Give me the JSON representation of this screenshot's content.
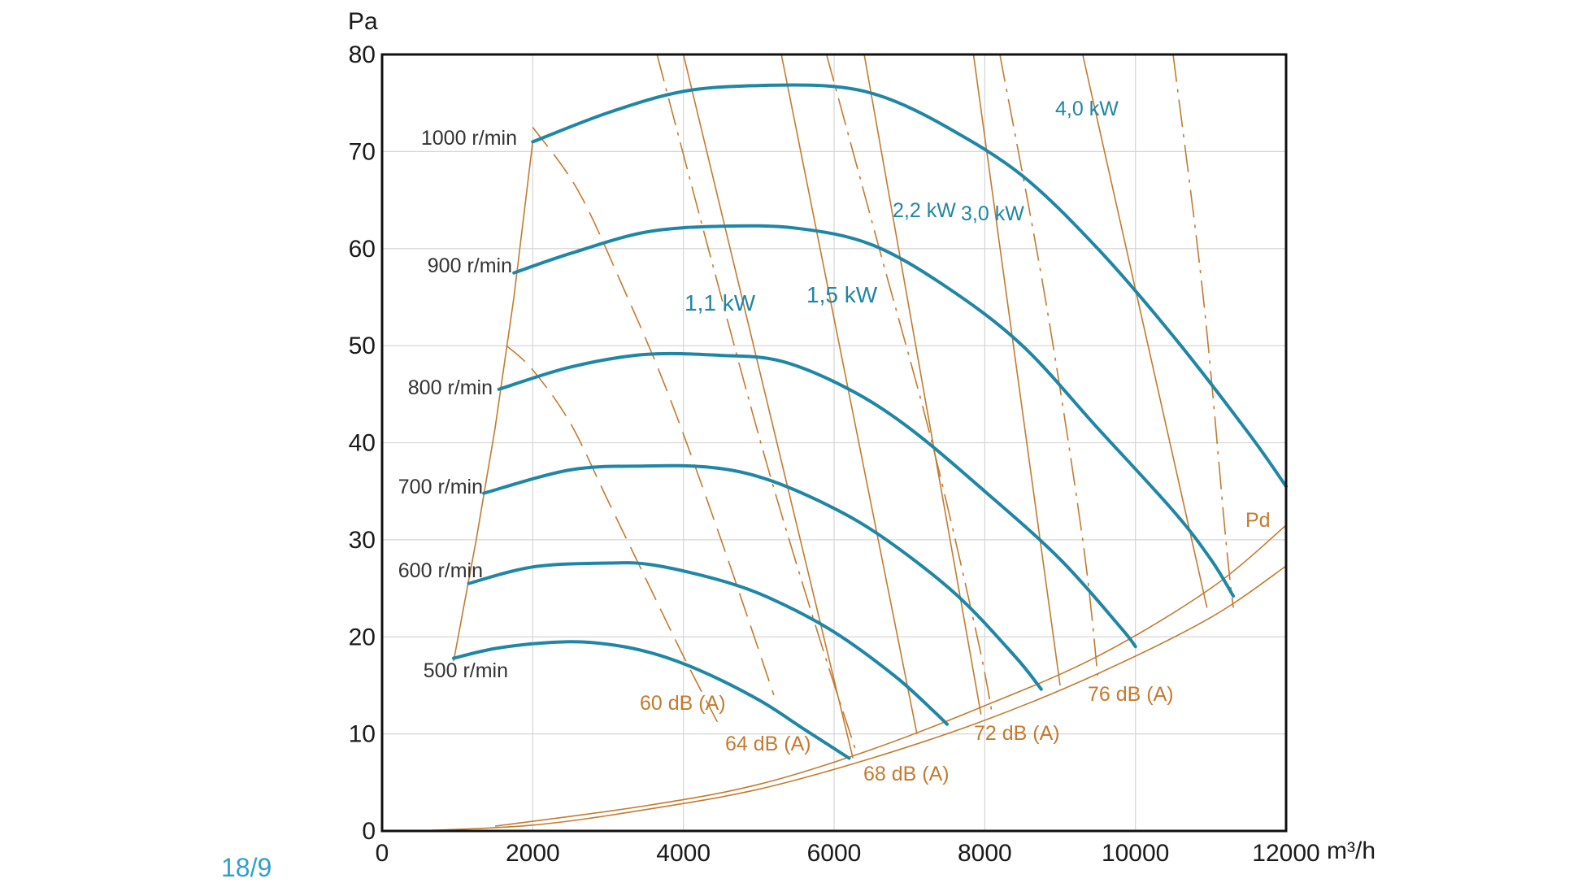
{
  "colors": {
    "speed": "#1f86a6",
    "line": "#c57a2e",
    "grid": "#d6d6d6",
    "frame": "#111111",
    "code": "#2f9fd0"
  },
  "chart_data": {
    "type": "line",
    "title": "",
    "page_code": "18/9",
    "xlabel": "m³/h",
    "ylabel": "Pa",
    "xlim": [
      0,
      12000
    ],
    "ylim": [
      0,
      80
    ],
    "x_ticks": [
      "0",
      "2000",
      "4000",
      "6000",
      "8000",
      "10000",
      "12000"
    ],
    "y_ticks": [
      "0",
      "10",
      "20",
      "30",
      "40",
      "50",
      "60",
      "70",
      "80"
    ],
    "speed_curves": [
      {
        "name": "1000 r/min",
        "points": [
          [
            2000,
            71
          ],
          [
            3000,
            74
          ],
          [
            4000,
            76.2
          ],
          [
            5000,
            76.8
          ],
          [
            6000,
            76.7
          ],
          [
            6700,
            75.5
          ],
          [
            7500,
            72.5
          ],
          [
            8500,
            67.5
          ],
          [
            9500,
            60
          ],
          [
            10500,
            51
          ],
          [
            11500,
            41
          ],
          [
            12000,
            35.5
          ]
        ]
      },
      {
        "name": "900 r/min",
        "points": [
          [
            1750,
            57.5
          ],
          [
            2500,
            59.5
          ],
          [
            3500,
            61.7
          ],
          [
            4500,
            62.3
          ],
          [
            5500,
            62.1
          ],
          [
            6500,
            60.4
          ],
          [
            7500,
            56
          ],
          [
            8500,
            50
          ],
          [
            9500,
            41.5
          ],
          [
            10500,
            33
          ],
          [
            11000,
            28
          ],
          [
            11300,
            24.2
          ]
        ]
      },
      {
        "name": "800 r/min",
        "points": [
          [
            1550,
            45.5
          ],
          [
            2500,
            47.8
          ],
          [
            3500,
            49.1
          ],
          [
            4500,
            49
          ],
          [
            5300,
            48.4
          ],
          [
            6200,
            45.5
          ],
          [
            7000,
            41.5
          ],
          [
            8000,
            35
          ],
          [
            9000,
            28
          ],
          [
            9800,
            21
          ],
          [
            10000,
            19
          ]
        ]
      },
      {
        "name": "700 r/min",
        "points": [
          [
            1350,
            34.8
          ],
          [
            2500,
            37.2
          ],
          [
            3500,
            37.6
          ],
          [
            4300,
            37.5
          ],
          [
            5000,
            36.5
          ],
          [
            5800,
            34
          ],
          [
            6600,
            30.5
          ],
          [
            7600,
            24.5
          ],
          [
            8400,
            18
          ],
          [
            8750,
            14.6
          ]
        ]
      },
      {
        "name": "600 r/min",
        "points": [
          [
            1150,
            25.5
          ],
          [
            2000,
            27.2
          ],
          [
            3000,
            27.6
          ],
          [
            3600,
            27.4
          ],
          [
            4500,
            25.8
          ],
          [
            5200,
            23.8
          ],
          [
            6000,
            20.5
          ],
          [
            6800,
            16
          ],
          [
            7300,
            12.5
          ],
          [
            7500,
            11
          ]
        ]
      },
      {
        "name": "500 r/min",
        "points": [
          [
            950,
            17.8
          ],
          [
            1500,
            18.8
          ],
          [
            2200,
            19.4
          ],
          [
            2800,
            19.4
          ],
          [
            3500,
            18.5
          ],
          [
            4200,
            16.6
          ],
          [
            5000,
            13.5
          ],
          [
            5600,
            10.5
          ],
          [
            6200,
            7.5
          ]
        ]
      }
    ],
    "limit_line": [
      [
        950,
        17.5
      ],
      [
        1250,
        30
      ],
      [
        1500,
        41.5
      ],
      [
        1750,
        55
      ],
      [
        2000,
        71
      ]
    ],
    "pd_curves": [
      {
        "name": "Pd",
        "points": [
          [
            1500,
            0.5
          ],
          [
            3500,
            2.6
          ],
          [
            5000,
            4.8
          ],
          [
            6500,
            8.4
          ],
          [
            8000,
            12.9
          ],
          [
            9500,
            18
          ],
          [
            11000,
            25
          ],
          [
            12000,
            31.5
          ]
        ]
      },
      {
        "name": "Pd lower",
        "points": [
          [
            450,
            0
          ],
          [
            2000,
            0.6
          ],
          [
            3500,
            2.2
          ],
          [
            5000,
            4.3
          ],
          [
            6500,
            7.5
          ],
          [
            8000,
            11.4
          ],
          [
            9500,
            16.2
          ],
          [
            11000,
            22
          ],
          [
            12000,
            27.3
          ]
        ]
      }
    ],
    "power_lines": [
      {
        "label": "1,1 kW",
        "points": [
          [
            4000,
            80
          ],
          [
            6250,
            7.5
          ]
        ]
      },
      {
        "label": "1,5 kW",
        "points": [
          [
            5300,
            80
          ],
          [
            7100,
            10
          ]
        ]
      },
      {
        "label": "2,2 kW",
        "points": [
          [
            6400,
            80
          ],
          [
            7950,
            12
          ]
        ]
      },
      {
        "label": "3,0 kW",
        "points": [
          [
            7850,
            80
          ],
          [
            9000,
            15
          ]
        ]
      },
      {
        "label": "4,0 kW",
        "points": [
          [
            9300,
            80
          ],
          [
            10950,
            23
          ]
        ]
      }
    ],
    "noise_lines": [
      {
        "label": "60 dB (A)",
        "style": "dash",
        "points": [
          [
            2000,
            72.5
          ],
          [
            2600,
            66
          ],
          [
            3200,
            56
          ],
          [
            3800,
            45
          ],
          [
            4500,
            30
          ],
          [
            5200,
            14
          ]
        ]
      },
      {
        "label": "64 dB (A)",
        "style": "dash",
        "points": [
          [
            1650,
            50
          ],
          [
            2000,
            47.5
          ],
          [
            2500,
            42
          ],
          [
            3000,
            34
          ],
          [
            3500,
            26
          ],
          [
            4000,
            18
          ],
          [
            4500,
            10.5
          ]
        ]
      },
      {
        "label": "68 dB (A)",
        "style": "dashdot",
        "points": [
          [
            3650,
            80
          ],
          [
            4400,
            58
          ],
          [
            5100,
            38
          ],
          [
            5800,
            20
          ],
          [
            6300,
            8
          ]
        ]
      },
      {
        "label": "72 dB (A)",
        "style": "dashdot",
        "points": [
          [
            5900,
            80
          ],
          [
            6600,
            60
          ],
          [
            7300,
            40
          ],
          [
            7900,
            20
          ],
          [
            8100,
            12
          ]
        ]
      },
      {
        "label": "76 dB (A)",
        "style": "dashdot",
        "points": [
          [
            8200,
            80
          ],
          [
            8800,
            55
          ],
          [
            9300,
            30
          ],
          [
            9500,
            16
          ]
        ]
      },
      {
        "label": "",
        "style": "dashdot",
        "points": [
          [
            10500,
            80
          ],
          [
            10900,
            55
          ],
          [
            11200,
            30
          ],
          [
            11300,
            23
          ]
        ]
      }
    ],
    "labels": {
      "rpm": [
        "1000 r/min",
        "900 r/min",
        "800 r/min",
        "700 r/min",
        "600 r/min",
        "500 r/min"
      ],
      "power": [
        "4,0 kW",
        "2,2 kW",
        "3,0 kW",
        "1,1 kW",
        "1,5 kW"
      ],
      "noise": [
        "60 dB (A)",
        "64 dB (A)",
        "68 dB (A)",
        "72 dB (A)",
        "76 dB (A)"
      ],
      "pd": "Pd"
    }
  }
}
